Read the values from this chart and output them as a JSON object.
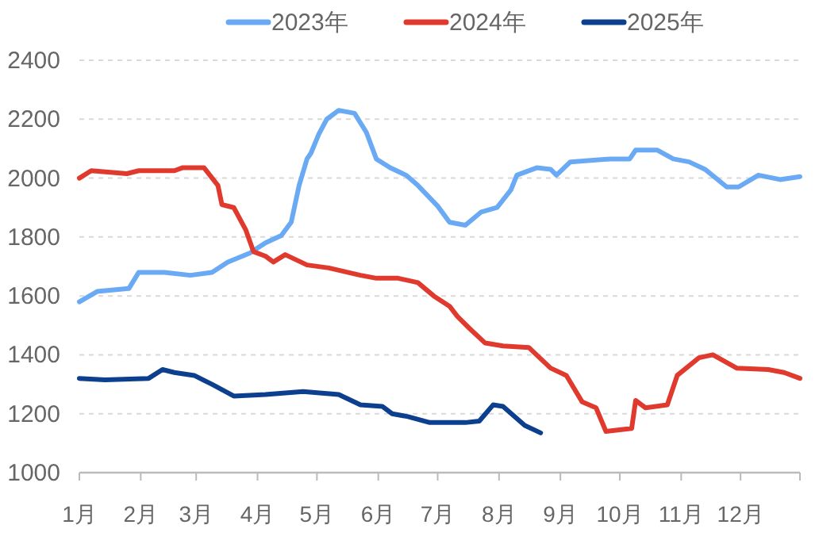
{
  "chart_data": {
    "type": "line",
    "legend": "top",
    "grid": "y",
    "xlim": [
      "--01-01",
      "--12-31"
    ],
    "xticks": [
      {
        "value": "--01-01",
        "label": "1月"
      },
      {
        "value": "--02-01",
        "label": "2月"
      },
      {
        "value": "--03-01",
        "label": "3月"
      },
      {
        "value": "--04-01",
        "label": "4月"
      },
      {
        "value": "--05-01",
        "label": "5月"
      },
      {
        "value": "--06-01",
        "label": "6月"
      },
      {
        "value": "--07-01",
        "label": "7月"
      },
      {
        "value": "--08-01",
        "label": "8月"
      },
      {
        "value": "--09-01",
        "label": "9月"
      },
      {
        "value": "--10-01",
        "label": "10月"
      },
      {
        "value": "--11-01",
        "label": "11月"
      },
      {
        "value": "--12-01",
        "label": "12月"
      },
      {
        "value": "--12-31",
        "label": null
      }
    ],
    "ylim": [
      1000,
      2400
    ],
    "yticks": [
      1000,
      1200,
      1400,
      1600,
      1800,
      2000,
      2200,
      2400
    ],
    "series": [
      {
        "name": "2023年",
        "color": "#6aaaf5",
        "x": [
          "--01-01",
          "--01-10",
          "--01-26",
          "--01-31",
          "--02-13",
          "--02-26",
          "--03-09",
          "--03-17",
          "--03-28",
          "--04-05",
          "--04-13",
          "--04-18",
          "--04-22",
          "--04-26",
          "--04-28",
          "--05-02",
          "--05-06",
          "--05-12",
          "--05-20",
          "--05-26",
          "--05-31",
          "--06-07",
          "--06-15",
          "--06-21",
          "--07-01",
          "--07-07",
          "--07-15",
          "--07-23",
          "--07-31",
          "--08-07",
          "--08-10",
          "--08-20",
          "--08-27",
          "--08-30",
          "--09-06",
          "--09-26",
          "--10-06",
          "--10-09",
          "--10-20",
          "--10-28",
          "--11-05",
          "--11-13",
          "--11-24",
          "--11-30",
          "--12-10",
          "--12-21",
          "--12-31"
        ],
        "values": [
          1580,
          1615,
          1625,
          1680,
          1680,
          1670,
          1680,
          1715,
          1745,
          1780,
          1805,
          1850,
          1975,
          2065,
          2085,
          2150,
          2200,
          2230,
          2220,
          2155,
          2065,
          2035,
          2010,
          1975,
          1905,
          1850,
          1840,
          1885,
          1900,
          1960,
          2010,
          2035,
          2030,
          2010,
          2055,
          2065,
          2065,
          2095,
          2095,
          2065,
          2055,
          2030,
          1970,
          1970,
          2010,
          1995,
          2005
        ]
      },
      {
        "name": "2024年",
        "color": "#e03a2e",
        "x": [
          "--01-01",
          "--01-07",
          "--01-25",
          "--01-31",
          "--02-18",
          "--02-22",
          "--03-05",
          "--03-12",
          "--03-14",
          "--03-20",
          "--03-26",
          "--03-30",
          "--04-05",
          "--04-09",
          "--04-15",
          "--04-26",
          "--05-07",
          "--05-23",
          "--05-31",
          "--06-11",
          "--06-21",
          "--06-29",
          "--07-07",
          "--07-11",
          "--07-17",
          "--07-25",
          "--08-03",
          "--08-16",
          "--08-27",
          "--09-04",
          "--09-12",
          "--09-19",
          "--09-24",
          "--10-07",
          "--10-09",
          "--10-14",
          "--10-25",
          "--10-30",
          "--11-10",
          "--11-17",
          "--11-29",
          "--12-15",
          "--12-23",
          "--12-31"
        ],
        "values": [
          2000,
          2025,
          2015,
          2025,
          2025,
          2035,
          2035,
          1975,
          1910,
          1900,
          1825,
          1750,
          1735,
          1715,
          1740,
          1705,
          1695,
          1670,
          1660,
          1660,
          1645,
          1600,
          1565,
          1530,
          1490,
          1440,
          1430,
          1425,
          1355,
          1330,
          1240,
          1220,
          1140,
          1150,
          1245,
          1220,
          1230,
          1330,
          1390,
          1400,
          1355,
          1350,
          1340,
          1320
        ]
      },
      {
        "name": "2025年",
        "color": "#0d3f8f",
        "x": [
          "--01-01",
          "--01-14",
          "--02-05",
          "--02-12",
          "--02-18",
          "--02-28",
          "--03-09",
          "--03-20",
          "--04-05",
          "--04-24",
          "--05-12",
          "--05-23",
          "--06-03",
          "--06-08",
          "--06-16",
          "--06-27",
          "--07-15",
          "--07-22",
          "--07-29",
          "--08-03",
          "--08-14",
          "--08-22"
        ],
        "values": [
          1320,
          1315,
          1320,
          1350,
          1340,
          1330,
          1300,
          1260,
          1265,
          1275,
          1265,
          1230,
          1225,
          1200,
          1190,
          1170,
          1170,
          1175,
          1230,
          1225,
          1160,
          1135
        ]
      }
    ]
  }
}
